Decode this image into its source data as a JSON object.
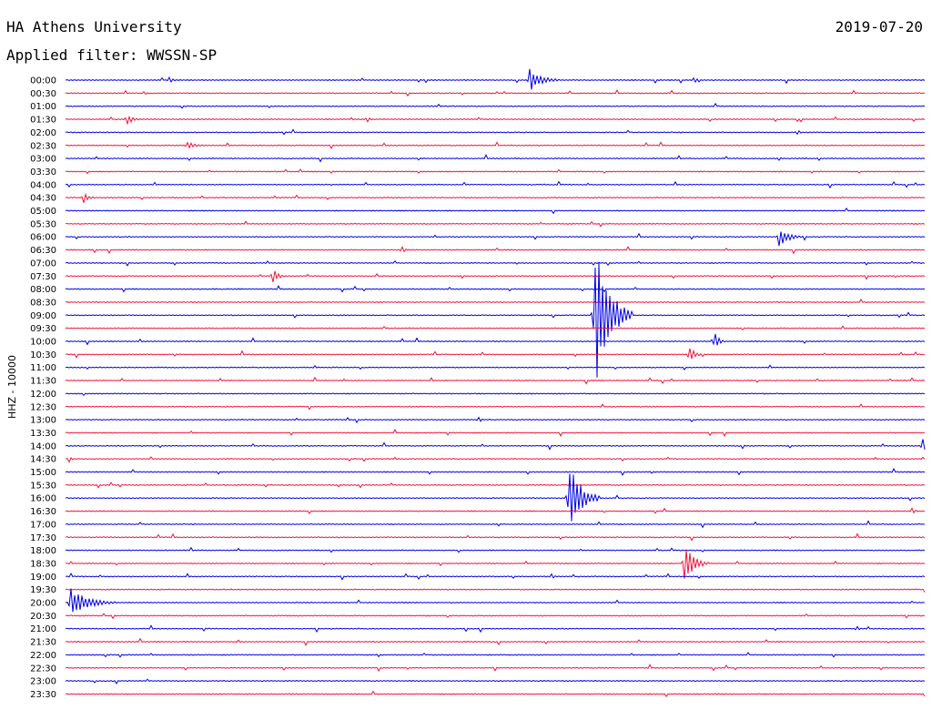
{
  "header": {
    "station": "HA Athens University",
    "filter": "Applied filter: WWSSN-SP",
    "date": "2019-07-20"
  },
  "chart_data": {
    "type": "line",
    "title": "HA Athens University",
    "ylabel": "HHZ - 10000",
    "colors": {
      "blue": "#0000e6",
      "red": "#f0143c"
    },
    "rows": [
      {
        "label": "00:00",
        "color": "blue",
        "events": [
          [
            0.12,
            5,
            0.4
          ],
          [
            0.54,
            14,
            1.2
          ],
          [
            0.73,
            4,
            0.5
          ]
        ]
      },
      {
        "label": "00:30",
        "color": "red",
        "events": [
          [
            0.09,
            3,
            0.3
          ]
        ]
      },
      {
        "label": "01:00",
        "color": "blue",
        "events": []
      },
      {
        "label": "01:30",
        "color": "red",
        "events": [
          [
            0.07,
            8,
            0.6
          ],
          [
            0.35,
            5,
            0.3
          ]
        ]
      },
      {
        "label": "02:00",
        "color": "blue",
        "events": [
          [
            0.85,
            4,
            0.4
          ]
        ]
      },
      {
        "label": "02:30",
        "color": "red",
        "events": [
          [
            0.14,
            5,
            1.0
          ]
        ]
      },
      {
        "label": "03:00",
        "color": "blue",
        "events": [
          [
            0.83,
            4,
            0.2
          ]
        ]
      },
      {
        "label": "03:30",
        "color": "red",
        "events": [
          [
            0.41,
            3,
            0.2
          ]
        ]
      },
      {
        "label": "04:00",
        "color": "blue",
        "events": []
      },
      {
        "label": "04:30",
        "color": "red",
        "events": [
          [
            0.02,
            8,
            0.5
          ]
        ]
      },
      {
        "label": "05:00",
        "color": "blue",
        "events": []
      },
      {
        "label": "05:30",
        "color": "red",
        "events": []
      },
      {
        "label": "06:00",
        "color": "blue",
        "events": [
          [
            0.83,
            12,
            1.0
          ]
        ]
      },
      {
        "label": "06:30",
        "color": "red",
        "events": [
          [
            0.39,
            6,
            0.3
          ]
        ]
      },
      {
        "label": "07:00",
        "color": "blue",
        "events": []
      },
      {
        "label": "07:30",
        "color": "red",
        "events": [
          [
            0.24,
            12,
            0.5
          ]
        ]
      },
      {
        "label": "08:00",
        "color": "blue",
        "events": []
      },
      {
        "label": "08:30",
        "color": "red",
        "events": []
      },
      {
        "label": "09:00",
        "color": "blue",
        "events": [
          [
            0.615,
            88,
            1.5
          ]
        ]
      },
      {
        "label": "09:30",
        "color": "red",
        "events": []
      },
      {
        "label": "10:00",
        "color": "blue",
        "events": [
          [
            0.755,
            13,
            0.4
          ]
        ]
      },
      {
        "label": "10:30",
        "color": "red",
        "events": [
          [
            0.725,
            14,
            0.5
          ]
        ]
      },
      {
        "label": "11:00",
        "color": "blue",
        "events": []
      },
      {
        "label": "11:30",
        "color": "red",
        "events": []
      },
      {
        "label": "12:00",
        "color": "blue",
        "events": []
      },
      {
        "label": "12:30",
        "color": "red",
        "events": []
      },
      {
        "label": "13:00",
        "color": "blue",
        "events": [
          [
            0.48,
            5,
            0.3
          ]
        ]
      },
      {
        "label": "13:30",
        "color": "red",
        "events": []
      },
      {
        "label": "14:00",
        "color": "blue",
        "events": [
          [
            0.997,
            12,
            0.3
          ]
        ]
      },
      {
        "label": "14:30",
        "color": "red",
        "events": [
          [
            0.004,
            4,
            0.3
          ]
        ]
      },
      {
        "label": "15:00",
        "color": "blue",
        "events": []
      },
      {
        "label": "15:30",
        "color": "red",
        "events": []
      },
      {
        "label": "16:00",
        "color": "blue",
        "events": [
          [
            0.585,
            45,
            1.2
          ]
        ]
      },
      {
        "label": "16:30",
        "color": "red",
        "events": [
          [
            0.985,
            5,
            0.3
          ]
        ]
      },
      {
        "label": "17:00",
        "color": "blue",
        "events": []
      },
      {
        "label": "17:30",
        "color": "red",
        "events": []
      },
      {
        "label": "18:00",
        "color": "blue",
        "events": []
      },
      {
        "label": "18:30",
        "color": "red",
        "events": [
          [
            0.72,
            22,
            1.0
          ]
        ]
      },
      {
        "label": "19:00",
        "color": "blue",
        "events": [
          [
            0.565,
            4,
            0.3
          ]
        ]
      },
      {
        "label": "19:30",
        "color": "red",
        "events": []
      },
      {
        "label": "20:00",
        "color": "blue",
        "events": [
          [
            0.005,
            18,
            1.8
          ]
        ]
      },
      {
        "label": "20:30",
        "color": "red",
        "events": []
      },
      {
        "label": "21:00",
        "color": "blue",
        "events": [
          [
            0.92,
            5,
            0.3
          ]
        ]
      },
      {
        "label": "21:30",
        "color": "red",
        "events": []
      },
      {
        "label": "22:00",
        "color": "blue",
        "events": []
      },
      {
        "label": "22:30",
        "color": "red",
        "events": []
      },
      {
        "label": "23:00",
        "color": "blue",
        "events": []
      },
      {
        "label": "23:30",
        "color": "red",
        "events": []
      }
    ]
  }
}
